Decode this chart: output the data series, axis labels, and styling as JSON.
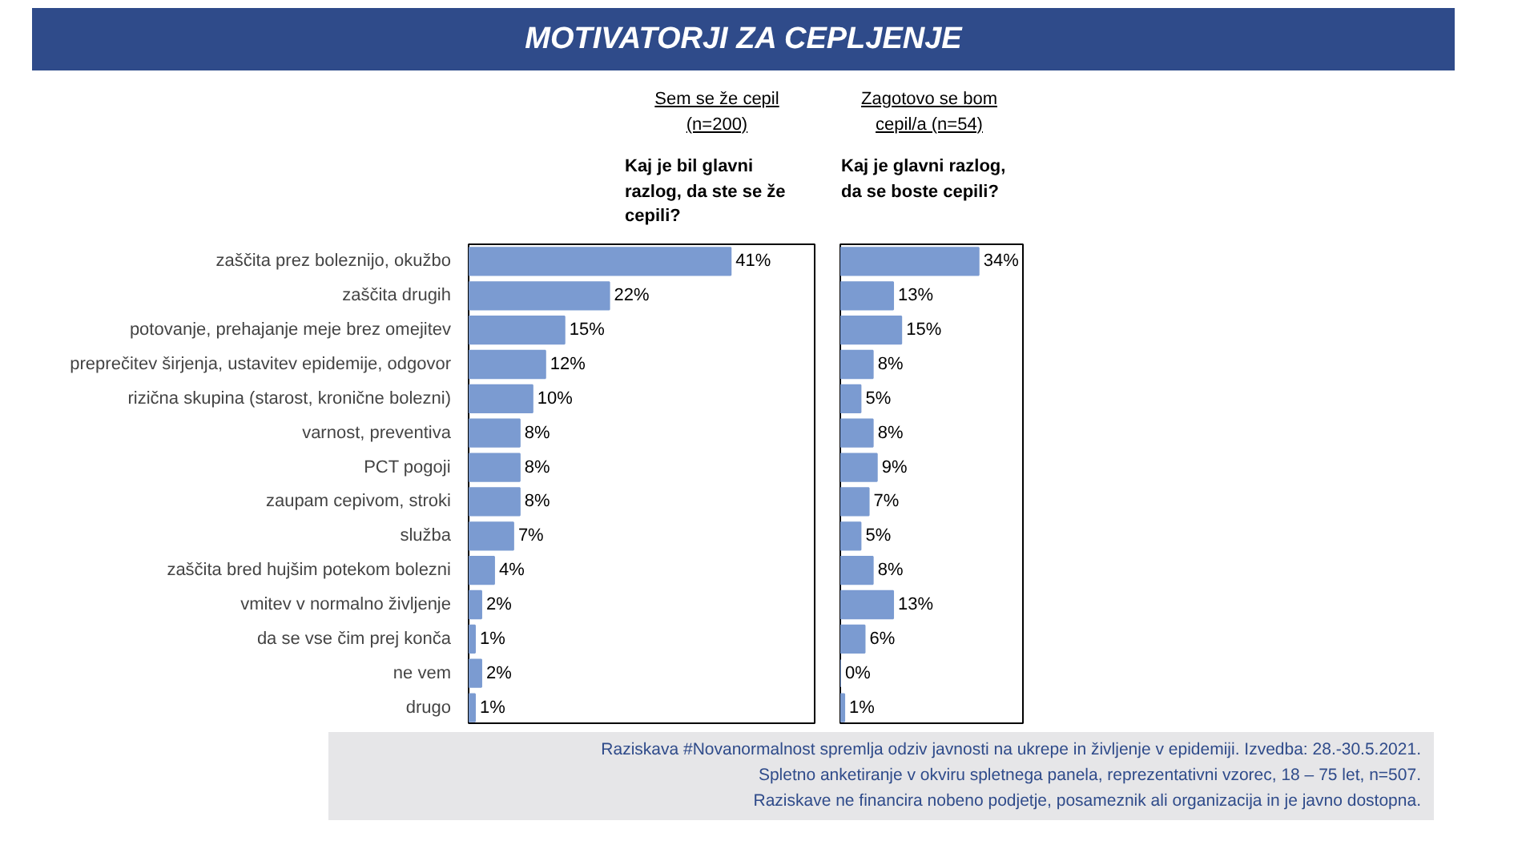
{
  "chart_data": [
    {
      "type": "bar",
      "orientation": "horizontal",
      "title": "MOTIVATORJI ZA CEPLJENJE",
      "subtitle": "Sem se že cepil (n=200)",
      "xlabel": "Kaj je bil glavni razlog, da ste se že cepili?",
      "categories": [
        "zaščita prez boleznijo, okužbo",
        "zaščita drugih",
        "potovanje, prehajanje meje brez omejitev",
        "preprečitev širjenja, ustavitev epidemije, odgovor",
        "rizična skupina (starost, kronične bolezni)",
        "varnost, preventiva",
        "PCT pogoji",
        "zaupam cepivom, stroki",
        "služba",
        "zaščita bred hujšim potekom bolezni",
        "vmitev v normalno življenje",
        "da se vse čim prej konča",
        "ne vem",
        "drugo"
      ],
      "values": [
        41,
        22,
        15,
        12,
        10,
        8,
        8,
        8,
        7,
        4,
        2,
        1,
        2,
        1
      ],
      "color": "#7b9bd1",
      "value_labels": [
        "41%",
        "22%",
        "15%",
        "12%",
        "10%",
        "8%",
        "8%",
        "8%",
        "7%",
        "4%",
        "2%",
        "1%",
        "2%",
        "1%"
      ],
      "tick_labels": "y",
      "grid": false,
      "annotations": [
        "Raziskava #Novanormalnost spremlja odziv javnosti na ukrepe in življenje v epidemiji. Izvedba: 28.-30.5.2021.",
        "Spletno anketiranje v okviru spletnega panela, reprezentativni vzorec, 18 – 75 let, n=507.",
        "Raziskave ne financira nobeno podjetje, posameznik ali organizacija in je javno dostopna."
      ]
    },
    {
      "type": "bar",
      "orientation": "horizontal",
      "subtitle": "Zagotovo se bom cepil/a (n=54)",
      "xlabel": "Kaj je glavni razlog, da se boste cepili?",
      "categories": [
        null,
        null,
        null,
        null,
        null,
        null,
        null,
        null,
        null,
        null,
        null,
        null,
        null,
        null
      ],
      "values": [
        34,
        13,
        15,
        8,
        5,
        8,
        9,
        7,
        5,
        8,
        13,
        6,
        0,
        1
      ],
      "color": "#7b9bd1",
      "value_labels": [
        "34%",
        "13%",
        "15%",
        "8%",
        "5%",
        "8%",
        "9%",
        "7%",
        "5%",
        "8%",
        "13%",
        "6%",
        "0%",
        "1%"
      ],
      "tick_labels": false,
      "grid": false
    }
  ]
}
